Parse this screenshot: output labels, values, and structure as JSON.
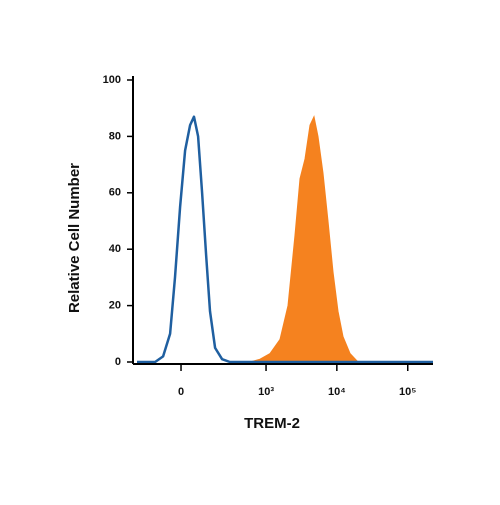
{
  "chart_data": {
    "type": "histogram-overlay",
    "xscale": "biexponential",
    "xlabel": "TREM-2",
    "ylabel": "Relative Cell Number",
    "xlim": [
      -250,
      227000
    ],
    "ylim": [
      0,
      100
    ],
    "xticks": [
      0,
      {
        "value": 1000,
        "label": "10³"
      },
      {
        "value": 10000,
        "label": "10⁴"
      },
      {
        "value": 100000,
        "label": "10⁵"
      }
    ],
    "yticks": [
      0,
      20,
      40,
      60,
      80,
      100
    ],
    "series": [
      {
        "color": "#f5821f",
        "fill": true,
        "x": [
          590,
          820,
          1139,
          1575,
          2045,
          2565,
          3023,
          3556,
          4178,
          4763,
          5423,
          6375,
          7506,
          8827,
          10389,
          12217,
          15342,
          19876
        ],
        "values": [
          0,
          1,
          3,
          8,
          20,
          45,
          65,
          72,
          84,
          87,
          80,
          67,
          50,
          32,
          18,
          9,
          3,
          0
        ]
      },
      {
        "color": "#1f5fa0",
        "fill": false,
        "x": [
          -250,
          -120,
          -78,
          -46,
          -25,
          -4,
          17,
          38,
          55,
          74,
          94,
          115,
          138,
          171,
          224,
          297,
          227000
        ],
        "values": [
          0,
          0,
          2,
          10,
          30,
          55,
          75,
          84,
          87,
          80,
          60,
          38,
          18,
          5,
          1,
          0,
          0
        ]
      }
    ]
  }
}
